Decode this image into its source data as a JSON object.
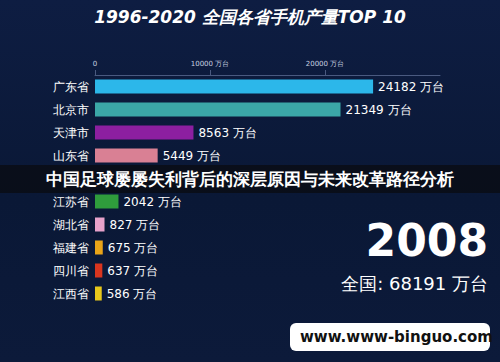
{
  "chart_data": {
    "type": "bar",
    "orientation": "horizontal",
    "title": "1996-2020 全国各省手机产量TOP 10",
    "categories": [
      "广东省",
      "北京市",
      "天津市",
      "山东省",
      null,
      "江苏省",
      "湖北省",
      "福建省",
      "四川省",
      "江西省"
    ],
    "values": [
      24182,
      21349,
      8563,
      5449,
      null,
      2042,
      827,
      675,
      637,
      586
    ],
    "value_labels": [
      "24182 万台",
      "21349 万台",
      "8563 万台",
      "5449 万台",
      null,
      "2042 万台",
      "827 万台",
      "675 万台",
      "637 万台",
      "586 万台"
    ],
    "colors": [
      "#2cb7ea",
      "#3ba7a8",
      "#8c1fa0",
      "#d98094",
      "#7f7f7f",
      "#2f9c3c",
      "#e7a2cb",
      "#e9a418",
      "#d8351f",
      "#e8c81b"
    ],
    "xlim": [
      0,
      30000
    ],
    "xticks": [
      0,
      {
        "value": 10000,
        "label": "10000 万台"
      },
      {
        "value": 20000,
        "label": "20000 万台"
      }
    ],
    "grid": false,
    "data_labels": true,
    "annotations": {
      "year": "2008",
      "total": "全国: 68191 万台",
      "banner": "中国足球屡屡失利背后的深层原因与未来改革路径分析",
      "watermark": "www.www-binguo.com"
    }
  }
}
